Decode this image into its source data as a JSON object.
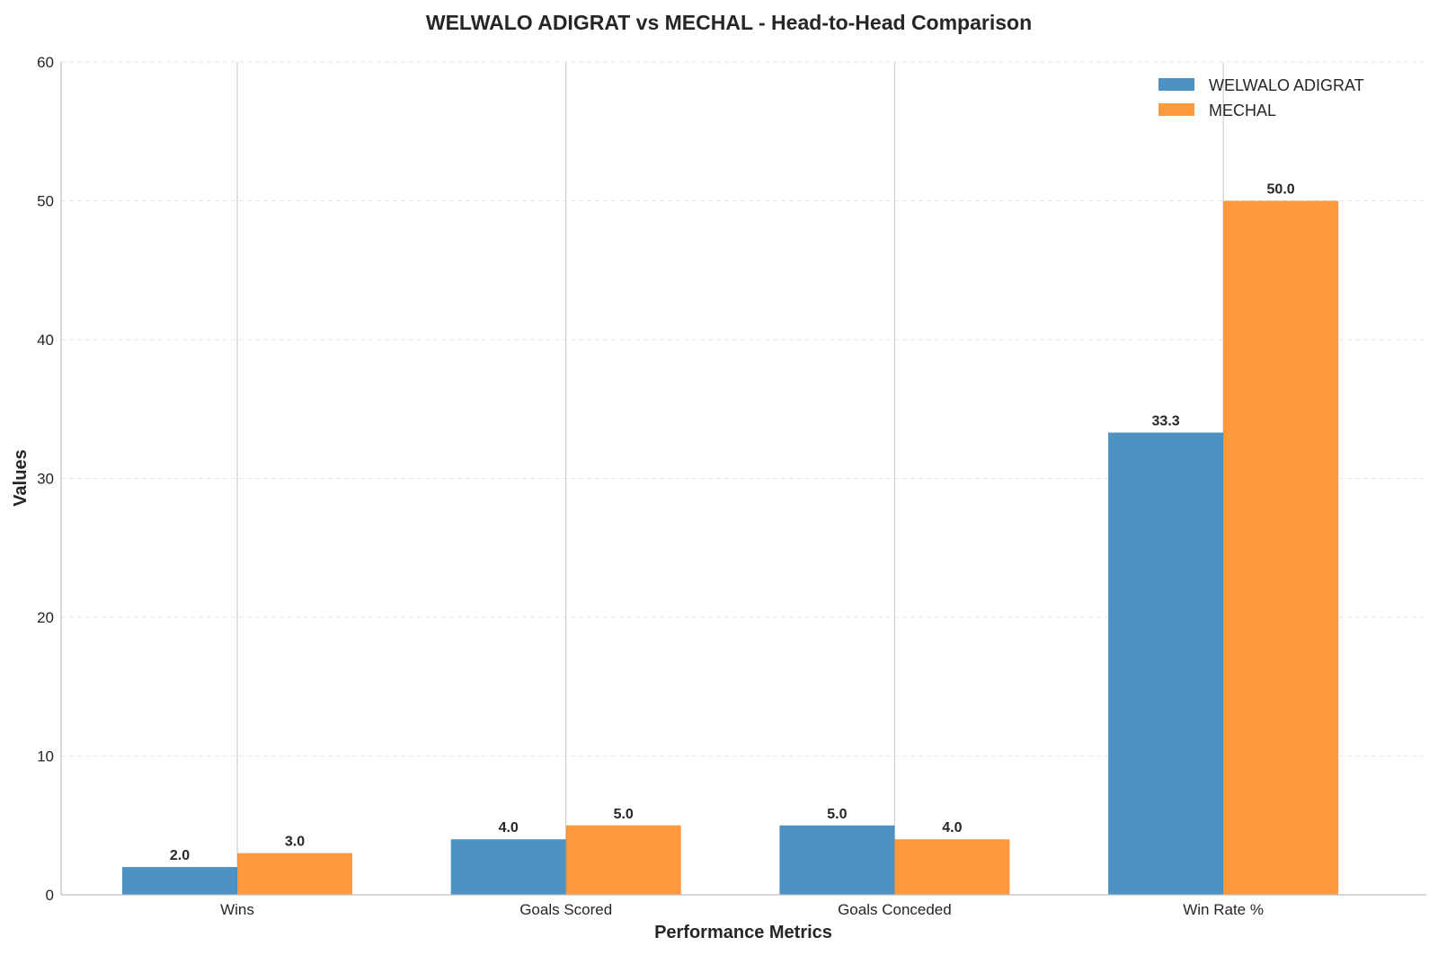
{
  "chart_data": {
    "type": "bar",
    "title": "WELWALO ADIGRAT vs MECHAL - Head-to-Head Comparison",
    "xlabel": "Performance Metrics",
    "ylabel": "Values",
    "categories": [
      "Wins",
      "Goals Scored",
      "Goals Conceded",
      "Win Rate %"
    ],
    "series": [
      {
        "name": "WELWALO ADIGRAT",
        "color": "#1f77b4",
        "values": [
          2.0,
          4.0,
          5.0,
          33.3
        ],
        "labels": [
          "2.0",
          "4.0",
          "5.0",
          "33.3"
        ]
      },
      {
        "name": "MECHAL",
        "color": "#ff7f0e",
        "values": [
          3.0,
          5.0,
          4.0,
          50.0
        ],
        "labels": [
          "3.0",
          "5.0",
          "4.0",
          "50.0"
        ]
      }
    ],
    "ylim": [
      0,
      60
    ],
    "yticks": [
      0,
      10,
      20,
      30,
      40,
      50,
      60
    ],
    "ytick_labels": [
      "0",
      "10",
      "20",
      "30",
      "40",
      "50",
      "60"
    ],
    "grid": true,
    "legend": "top-right"
  }
}
